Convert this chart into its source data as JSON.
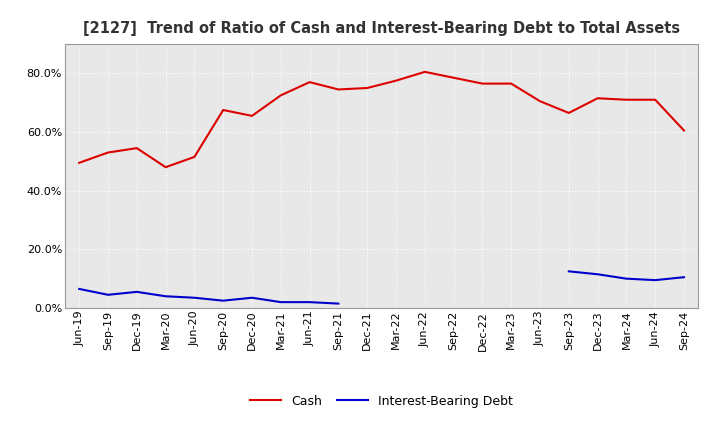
{
  "title": "[2127]  Trend of Ratio of Cash and Interest-Bearing Debt to Total Assets",
  "x_labels": [
    "Jun-19",
    "Sep-19",
    "Dec-19",
    "Mar-20",
    "Jun-20",
    "Sep-20",
    "Dec-20",
    "Mar-21",
    "Jun-21",
    "Sep-21",
    "Dec-21",
    "Mar-22",
    "Jun-22",
    "Sep-22",
    "Dec-22",
    "Mar-23",
    "Jun-23",
    "Sep-23",
    "Dec-23",
    "Mar-24",
    "Jun-24",
    "Sep-24"
  ],
  "cash": [
    49.5,
    53.0,
    54.5,
    48.0,
    51.5,
    67.5,
    65.5,
    72.5,
    77.0,
    74.5,
    75.0,
    77.5,
    80.5,
    78.5,
    76.5,
    76.5,
    70.5,
    66.5,
    71.5,
    71.0,
    71.0,
    60.5
  ],
  "interest_bearing_debt_seg1": [
    6.5,
    4.5,
    5.5,
    4.0,
    3.5,
    2.5,
    3.5,
    2.0,
    2.0,
    1.5
  ],
  "interest_bearing_debt_seg1_x": [
    0,
    1,
    2,
    3,
    4,
    5,
    6,
    7,
    8,
    9
  ],
  "interest_bearing_debt_seg2": [
    12.5,
    11.5,
    10.0,
    9.5,
    10.5
  ],
  "interest_bearing_debt_seg2_x": [
    17,
    18,
    19,
    20,
    21
  ],
  "cash_color": "#dd0000",
  "debt_color": "#0000cc",
  "background_color": "#ffffff",
  "plot_bg_color": "#e8e8e8",
  "grid_color": "#ffffff",
  "ylim": [
    0,
    90
  ],
  "yticks": [
    0,
    20,
    40,
    60,
    80
  ],
  "ytick_labels": [
    "0.0%",
    "20.0%",
    "40.0%",
    "60.0%",
    "80.0%"
  ],
  "title_fontsize": 10.5,
  "tick_fontsize": 8,
  "legend_fontsize": 9
}
